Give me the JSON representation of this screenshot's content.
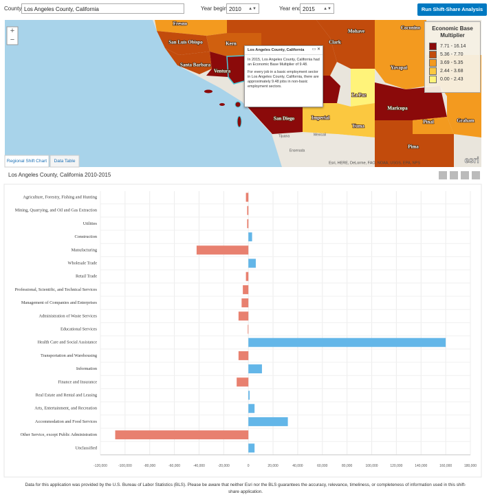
{
  "toolbar": {
    "county_label": "County",
    "county_value": "Los Angeles County, California",
    "year_begin_label": "Year begin",
    "year_begin_value": "2010",
    "year_end_label": "Year end",
    "year_end_value": "2015",
    "run_button": "Run Shift-Share Analysis"
  },
  "map": {
    "zoom_in": "+",
    "zoom_out": "−",
    "labels": [
      "Fresno",
      "Kern",
      "San Luis Obispo",
      "Santa Barbara",
      "Ventura",
      "Mohave",
      "Clark",
      "Coconino",
      "Yavapai",
      "La Paz",
      "Maricopa",
      "Pinal",
      "Graham",
      "Yuma",
      "Imperial",
      "San Diego",
      "Pima"
    ],
    "places": [
      "Tijuana",
      "Mexicali",
      "Ensenada"
    ],
    "attribution": "Esri, HERE, DeLorme, FAO, NOAA, USGS, EPA, NPS",
    "logo": "esri",
    "popup": {
      "title": "Los Angeles County, California",
      "paragraphs": [
        "In 2015, Los Angeles County, California had an Economic Base Multiplier of 9.48.",
        "For every job in a basic employment sector in Los Angeles County, California, there are approximately 9.48 jobs in non-basic employment sectors."
      ]
    },
    "legend": {
      "title": "Economic Base Multiplier",
      "items": [
        {
          "label": "7.71 - 16.14",
          "color": "#8b0a0a"
        },
        {
          "label": "5.36 - 7.70",
          "color": "#c24b0c"
        },
        {
          "label": "3.69 - 5.35",
          "color": "#f39a1f"
        },
        {
          "label": "2.44 - 3.68",
          "color": "#fbc840"
        },
        {
          "label": "0.00 - 2.43",
          "color": "#fff37a"
        }
      ]
    }
  },
  "tabs": [
    "Regional Shift Chart",
    "Data Table"
  ],
  "chart_data": {
    "type": "bar",
    "orientation": "horizontal",
    "title": "Los Angeles County, California 2010-2015",
    "categories": [
      "Agriculture, Forestry, Fishing and Hunting",
      "Mining, Quarrying, and Oil and Gas Extraction",
      "Utilities",
      "Construction",
      "Manufacturing",
      "Wholesale Trade",
      "Retail Trade",
      "Professional, Scientific, and Technical Services",
      "Management of Companies and Enterprises",
      "Administration of Waste Services",
      "Educational Services",
      "Health Care and Social Assistance",
      "Transportation and Warehousing",
      "Information",
      "Finance and Insurance",
      "Real Estate and Rental and Leasing",
      "Arts, Entertainment, and Recreation",
      "Accommodation and Food Services",
      "Other Service, except Public Administration",
      "Unclassified"
    ],
    "values": [
      -2000,
      -1000,
      -1000,
      3000,
      -42000,
      6000,
      -2000,
      -4500,
      -5500,
      -8000,
      -500,
      160000,
      -8000,
      11000,
      -9500,
      1000,
      5000,
      32000,
      -108000,
      5000
    ],
    "colors": {
      "negative": "#e8806f",
      "positive": "#63b6e8"
    },
    "xlim": [
      -120000,
      180000
    ],
    "xticks": [
      {
        "value": -120000,
        "label": "-120,000"
      },
      {
        "value": -100000,
        "label": "-100,000"
      },
      {
        "value": -80000,
        "label": "-80,000"
      },
      {
        "value": -60000,
        "label": "-60,000"
      },
      {
        "value": -40000,
        "label": "-40,000"
      },
      {
        "value": -20000,
        "label": "-20,000"
      },
      0,
      {
        "value": 20000,
        "label": "20,000"
      },
      {
        "value": 40000,
        "label": "40,000"
      },
      {
        "value": 60000,
        "label": "60,000"
      },
      {
        "value": 80000,
        "label": "80,000"
      },
      {
        "value": 100000,
        "label": "100,000"
      },
      {
        "value": 120000,
        "label": "120,000"
      },
      {
        "value": 140000,
        "label": "140,000"
      },
      {
        "value": 160000,
        "label": "160,000"
      },
      {
        "value": 180000,
        "label": "180,000"
      }
    ],
    "grid": true
  },
  "footer": "Data for this application was provided by the U.S. Bureau of Labor Statistics (BLS).  Please be aware that neither Esri nor the BLS guarantees the accuracy, relevance, timeliness, or completeness of information used in this shift-share application."
}
